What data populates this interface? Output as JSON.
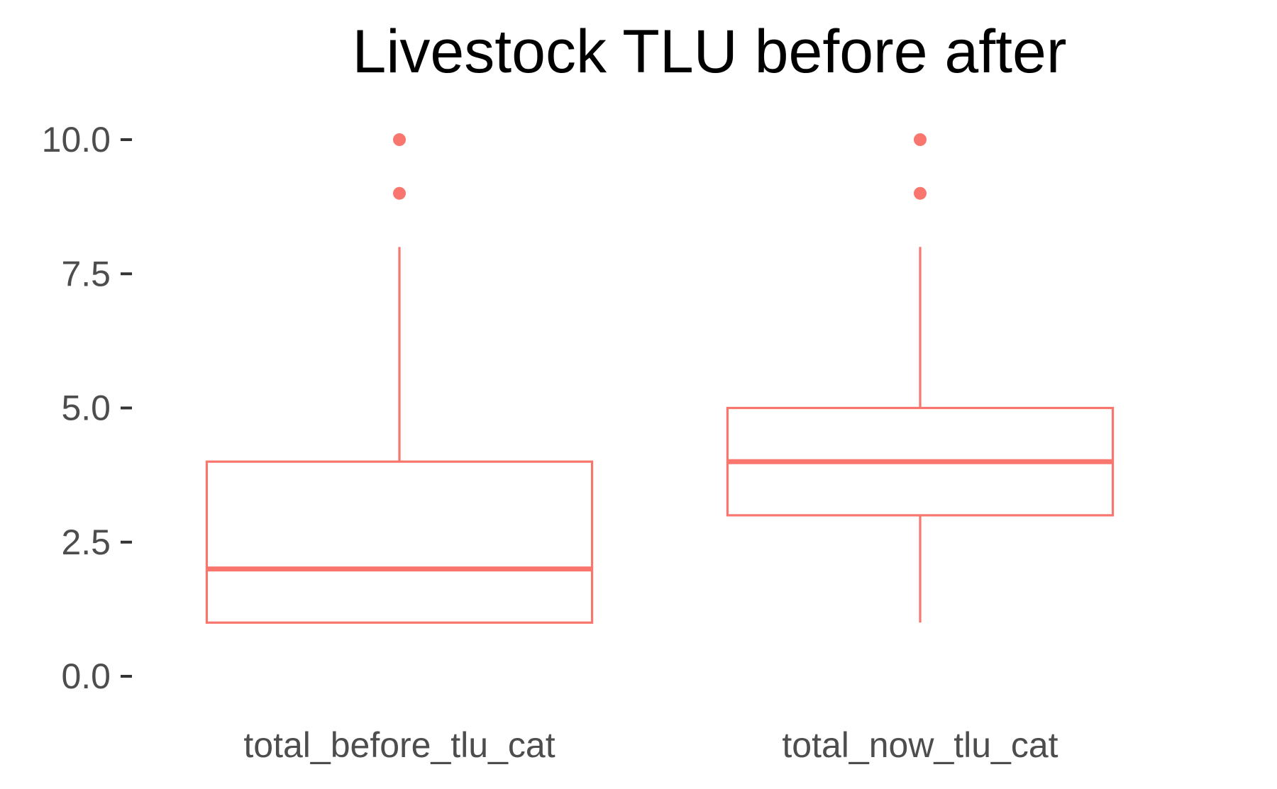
{
  "chart_data": {
    "type": "box",
    "title": "Livestock TLU before after",
    "xlabel": "",
    "ylabel": "",
    "categories": [
      "total_before_tlu_cat",
      "total_now_tlu_cat"
    ],
    "boxes": [
      {
        "category": "total_before_tlu_cat",
        "min": 1,
        "q1": 1,
        "median": 2,
        "q3": 4,
        "max": 8,
        "outliers": [
          9,
          10
        ]
      },
      {
        "category": "total_now_tlu_cat",
        "min": 1,
        "q1": 3,
        "median": 4,
        "q3": 5,
        "max": 8,
        "outliers": [
          9,
          10
        ]
      }
    ],
    "ylim": [
      0,
      10
    ],
    "yticks": [
      "0.0",
      "2.5",
      "5.0",
      "7.5",
      "10.0"
    ],
    "ytick_values": [
      0,
      2.5,
      5,
      7.5,
      10
    ],
    "grid": false,
    "legend": "none",
    "colors": {
      "box": "#f8766d",
      "text": "#4d4d4d",
      "title": "#000000",
      "tick": "#333333"
    }
  }
}
